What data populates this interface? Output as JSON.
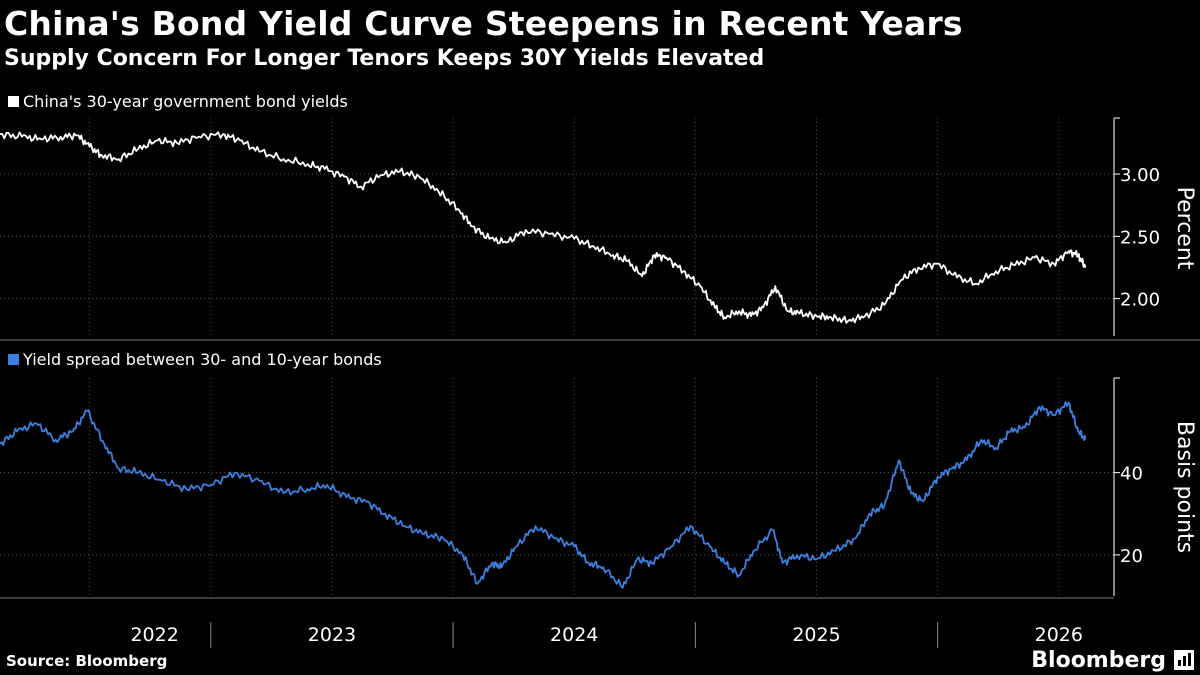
{
  "header": {
    "title": "China's Bond Yield Curve Steepens in Recent Years",
    "subtitle": "Supply Concern For Longer Tenors Keeps 30Y Yields Elevated"
  },
  "footer": {
    "source": "Source: Bloomberg",
    "brand": "Bloomberg"
  },
  "colors": {
    "background": "#000000",
    "yield_line": "#ffffff",
    "spread_line": "#3b80e0",
    "grid": "#666666"
  },
  "chart_data": [
    {
      "type": "line",
      "legend": "China's 30-year government bond yields",
      "ylabel": "Percent",
      "ylim": [
        1.7,
        3.45
      ],
      "yticks": [
        2.0,
        2.5,
        3.0
      ],
      "ytick_labels": [
        "2.00",
        "2.50",
        "3.00"
      ],
      "x_start": 2021.63,
      "x_end": 2026.17,
      "series": [
        {
          "name": "China's 30-year government bond yields",
          "x": [
            2021.63,
            2021.72,
            2021.8,
            2021.88,
            2021.95,
            2022.0,
            2022.05,
            2022.12,
            2022.2,
            2022.28,
            2022.36,
            2022.45,
            2022.55,
            2022.62,
            2022.7,
            2022.8,
            2022.9,
            2022.97,
            2023.05,
            2023.12,
            2023.2,
            2023.28,
            2023.36,
            2023.44,
            2023.52,
            2023.58,
            2023.65,
            2023.72,
            2023.8,
            2023.9,
            2024.0,
            2024.08,
            2024.16,
            2024.22,
            2024.28,
            2024.33,
            2024.38,
            2024.45,
            2024.52,
            2024.58,
            2024.62,
            2024.68,
            2024.73,
            2024.78,
            2024.83,
            2024.88,
            2024.93,
            2025.0,
            2025.06,
            2025.13,
            2025.2,
            2025.28,
            2025.35,
            2025.42,
            2025.5,
            2025.58,
            2025.66,
            2025.74,
            2025.82,
            2025.9,
            2025.98,
            2026.04,
            2026.08,
            2026.11
          ],
          "values": [
            3.32,
            3.3,
            3.28,
            3.3,
            3.31,
            3.22,
            3.15,
            3.12,
            3.2,
            3.27,
            3.25,
            3.3,
            3.32,
            3.27,
            3.18,
            3.12,
            3.08,
            3.04,
            2.98,
            2.9,
            2.99,
            3.02,
            2.98,
            2.86,
            2.72,
            2.58,
            2.48,
            2.45,
            2.55,
            2.52,
            2.48,
            2.42,
            2.35,
            2.3,
            2.18,
            2.35,
            2.33,
            2.22,
            2.1,
            1.93,
            1.85,
            1.9,
            1.86,
            1.93,
            2.1,
            1.9,
            1.88,
            1.86,
            1.85,
            1.82,
            1.86,
            1.95,
            2.15,
            2.25,
            2.28,
            2.17,
            2.12,
            2.22,
            2.27,
            2.33,
            2.28,
            2.38,
            2.35,
            2.25
          ]
        }
      ]
    },
    {
      "type": "line",
      "legend": "Yield spread between 30- and 10-year bonds",
      "ylabel": "Basis points",
      "ylim": [
        10,
        63
      ],
      "yticks": [
        20,
        40
      ],
      "ytick_labels": [
        "20",
        "40"
      ],
      "x_start": 2021.63,
      "x_end": 2026.17,
      "series": [
        {
          "name": "Yield spread between 30- and 10-year bonds",
          "x": [
            2021.63,
            2021.7,
            2021.78,
            2021.86,
            2021.93,
            2021.99,
            2022.06,
            2022.12,
            2022.2,
            2022.3,
            2022.4,
            2022.5,
            2022.6,
            2022.7,
            2022.8,
            2022.9,
            2022.98,
            2023.06,
            2023.14,
            2023.22,
            2023.3,
            2023.38,
            2023.46,
            2023.54,
            2023.6,
            2023.66,
            2023.7,
            2023.76,
            2023.84,
            2023.92,
            2024.0,
            2024.06,
            2024.12,
            2024.2,
            2024.26,
            2024.32,
            2024.4,
            2024.48,
            2024.56,
            2024.62,
            2024.68,
            2024.74,
            2024.82,
            2024.86,
            2024.92,
            2025.0,
            2025.08,
            2025.16,
            2025.22,
            2025.28,
            2025.34,
            2025.39,
            2025.44,
            2025.5,
            2025.56,
            2025.62,
            2025.68,
            2025.74,
            2025.8,
            2025.86,
            2025.92,
            2025.98,
            2026.04,
            2026.08,
            2026.11
          ],
          "values": [
            47,
            50,
            52,
            48,
            50,
            55,
            47,
            41,
            40,
            38,
            36,
            37,
            40,
            38,
            35,
            36,
            37,
            34,
            33,
            30,
            27,
            25,
            24,
            20,
            13,
            18,
            17,
            22,
            27,
            24,
            22,
            18,
            17,
            12,
            19,
            18,
            22,
            27,
            22,
            18,
            15,
            21,
            26,
            18,
            20,
            19,
            21,
            24,
            30,
            32,
            43,
            35,
            33,
            39,
            41,
            43,
            48,
            46,
            50,
            51,
            56,
            54,
            57,
            50,
            48
          ]
        }
      ]
    }
  ],
  "x_axis": {
    "labels": [
      "2022",
      "2023",
      "2024",
      "2025",
      "2026"
    ],
    "label_years": [
      2022.0,
      2023.0,
      2024.0,
      2025.0,
      2026.0
    ],
    "boundaries": [
      2022.5,
      2023.5,
      2024.5,
      2025.5
    ]
  }
}
